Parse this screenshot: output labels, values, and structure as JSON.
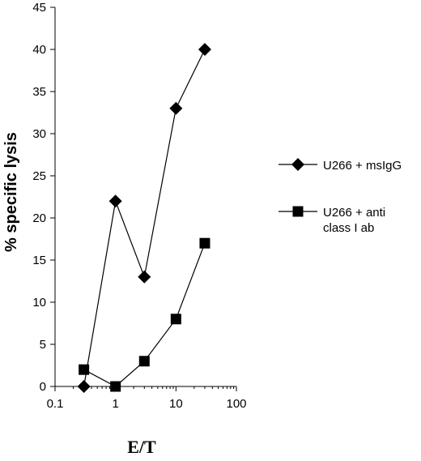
{
  "chart_data": {
    "type": "line",
    "xlabel": "E/T",
    "ylabel": "% specific lysis",
    "x_scale": "log",
    "xlim": [
      0.1,
      100
    ],
    "ylim": [
      0,
      45
    ],
    "x_ticks": [
      "0.1",
      "1",
      "10",
      "100"
    ],
    "y_ticks": [
      "0",
      "5",
      "10",
      "15",
      "20",
      "25",
      "30",
      "35",
      "40",
      "45"
    ],
    "grid": false,
    "legend_position": "right",
    "series": [
      {
        "name": "U266 + msIgG",
        "marker": "diamond",
        "x": [
          0.3,
          1,
          3,
          10,
          30
        ],
        "y": [
          0,
          22,
          13,
          33,
          40
        ]
      },
      {
        "name_lines": [
          "U266 + anti",
          "class I ab"
        ],
        "marker": "square",
        "x": [
          0.3,
          1,
          3,
          10,
          30
        ],
        "y": [
          2,
          0,
          3,
          8,
          17
        ]
      }
    ]
  }
}
